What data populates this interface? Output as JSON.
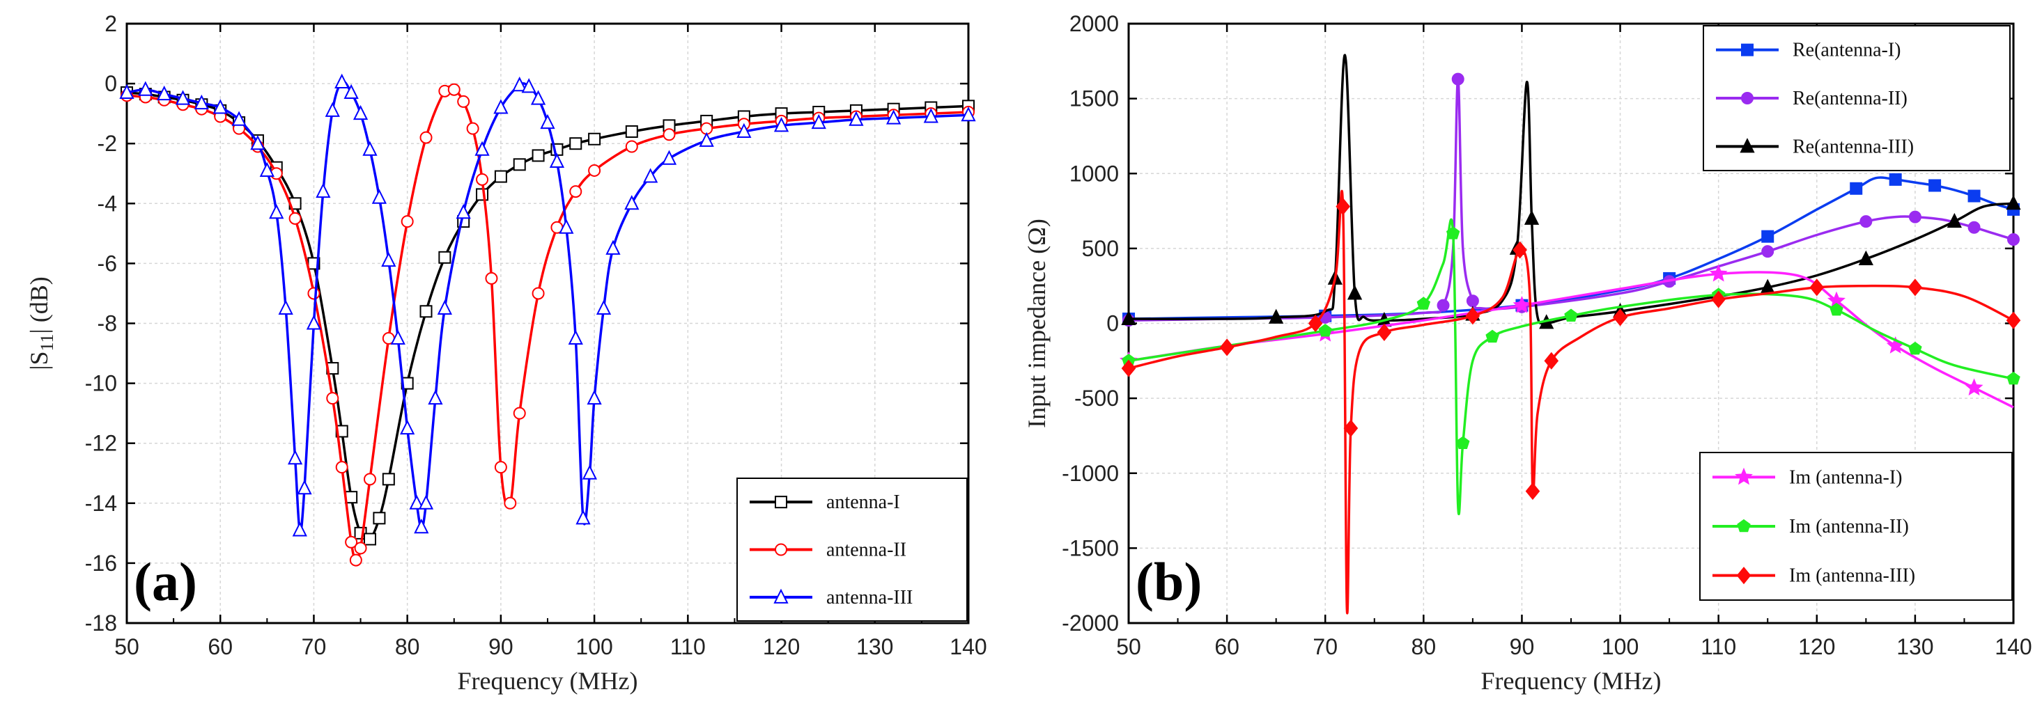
{
  "chart_data": [
    {
      "type": "line",
      "panel_label": "(a)",
      "xlabel": "Frequency  (MHz)",
      "ylabel": "|S11| (dB)",
      "ylabel_main": "|S",
      "ylabel_sub": "11",
      "ylabel_tail": "| (dB)",
      "xlim": [
        50,
        140
      ],
      "ylim": [
        -18,
        2
      ],
      "xticks": [
        50,
        60,
        70,
        80,
        90,
        100,
        110,
        120,
        130,
        140
      ],
      "yticks": [
        -18,
        -16,
        -14,
        -12,
        -10,
        -8,
        -6,
        -4,
        -2,
        0,
        2
      ],
      "grid": true,
      "legend_position": "bottom-right",
      "series": [
        {
          "name": "antenna-I",
          "color": "#000000",
          "marker": "square",
          "dip_mhz": 76,
          "min_db": -15.2,
          "left_width": 5.5,
          "right_width": 9,
          "mirrored_dip_mhz": null,
          "x": [
            50,
            52,
            54,
            56,
            58,
            60,
            62,
            64,
            66,
            68,
            70,
            72,
            73,
            74,
            75,
            76,
            77,
            78,
            80,
            82,
            84,
            86,
            88,
            90,
            92,
            94,
            96,
            98,
            100,
            104,
            108,
            112,
            116,
            120,
            124,
            128,
            132,
            136,
            140
          ],
          "y": [
            -0.3,
            -0.35,
            -0.45,
            -0.55,
            -0.7,
            -0.9,
            -1.3,
            -1.9,
            -2.8,
            -4.0,
            -6.0,
            -9.5,
            -11.6,
            -13.8,
            -15.0,
            -15.2,
            -14.5,
            -13.2,
            -10.0,
            -7.6,
            -5.8,
            -4.6,
            -3.7,
            -3.1,
            -2.7,
            -2.4,
            -2.2,
            -2.0,
            -1.85,
            -1.6,
            -1.4,
            -1.25,
            -1.1,
            -1.0,
            -0.95,
            -0.9,
            -0.85,
            -0.8,
            -0.75
          ]
        },
        {
          "name": "antenna-II",
          "color": "#ff0000",
          "marker": "circle",
          "dip_mhz": 74.5,
          "min_db": -16,
          "mirrored_dip_mhz": 90,
          "x": [
            50,
            52,
            54,
            56,
            58,
            60,
            62,
            64,
            66,
            68,
            70,
            72,
            73,
            74,
            74.5,
            75,
            76,
            78,
            80,
            82,
            84,
            85,
            86,
            87,
            88,
            89,
            90,
            91,
            92,
            94,
            96,
            98,
            100,
            104,
            108,
            112,
            116,
            120,
            124,
            128,
            132,
            136,
            140
          ],
          "y": [
            -0.4,
            -0.45,
            -0.55,
            -0.7,
            -0.85,
            -1.1,
            -1.5,
            -2.1,
            -3.0,
            -4.5,
            -7.0,
            -10.5,
            -12.8,
            -15.3,
            -15.9,
            -15.5,
            -13.2,
            -8.5,
            -4.6,
            -1.8,
            -0.25,
            -0.2,
            -0.6,
            -1.5,
            -3.2,
            -6.5,
            -12.8,
            -14.0,
            -11.0,
            -7.0,
            -4.8,
            -3.6,
            -2.9,
            -2.1,
            -1.7,
            -1.5,
            -1.35,
            -1.25,
            -1.15,
            -1.1,
            -1.05,
            -1.0,
            -0.95
          ]
        },
        {
          "name": "antenna-III",
          "color": "#0000ff",
          "marker": "triangle",
          "dip_mhz": 68.5,
          "min_db": -15,
          "x": [
            50,
            52,
            54,
            56,
            58,
            60,
            62,
            64,
            65,
            66,
            67,
            68,
            68.5,
            69,
            70,
            71,
            72,
            73,
            74,
            75,
            76,
            77,
            78,
            79,
            80,
            81,
            81.5,
            82,
            83,
            84,
            86,
            88,
            90,
            92,
            93,
            94,
            95,
            96,
            97,
            98,
            98.8,
            99.5,
            100,
            101,
            102,
            104,
            106,
            108,
            112,
            116,
            120,
            124,
            128,
            132,
            136,
            140
          ],
          "y": [
            -0.3,
            -0.2,
            -0.35,
            -0.5,
            -0.65,
            -0.8,
            -1.2,
            -2.0,
            -2.9,
            -4.3,
            -7.5,
            -12.5,
            -14.9,
            -13.5,
            -8.0,
            -3.6,
            -0.9,
            0.05,
            -0.3,
            -1.0,
            -2.2,
            -3.8,
            -5.9,
            -8.5,
            -11.5,
            -14.0,
            -14.8,
            -14.0,
            -10.5,
            -7.5,
            -4.3,
            -2.2,
            -0.8,
            -0.05,
            -0.1,
            -0.5,
            -1.3,
            -2.6,
            -4.8,
            -8.5,
            -14.5,
            -13.0,
            -10.5,
            -7.5,
            -5.5,
            -4.0,
            -3.1,
            -2.5,
            -1.9,
            -1.6,
            -1.4,
            -1.3,
            -1.2,
            -1.15,
            -1.1,
            -1.05
          ]
        }
      ]
    },
    {
      "type": "line",
      "panel_label": "(b)",
      "xlabel": "Frequency (MHz)",
      "ylabel": "Input impedance  (Ω)",
      "xlim": [
        50,
        140
      ],
      "ylim": [
        -2000,
        2000
      ],
      "xticks": [
        50,
        60,
        70,
        80,
        90,
        100,
        110,
        120,
        130,
        140
      ],
      "yticks": [
        -2000,
        -1500,
        -1000,
        -500,
        0,
        500,
        1000,
        1500,
        2000
      ],
      "grid": true,
      "legend_position": "top-right and bottom-right",
      "series": [
        {
          "name": "Re(antenna-I)",
          "color": "#0a3cf0",
          "marker": "square",
          "group": "re",
          "x": [
            50,
            60,
            70,
            80,
            90,
            100,
            105,
            110,
            115,
            120,
            124,
            126,
            128,
            130,
            132,
            134,
            136,
            138,
            140
          ],
          "y": [
            30,
            40,
            50,
            70,
            120,
            220,
            300,
            430,
            580,
            760,
            900,
            970,
            960,
            940,
            920,
            890,
            850,
            800,
            760
          ]
        },
        {
          "name": "Re(antenna-II)",
          "color": "#9a2bf0",
          "marker": "circle",
          "group": "re",
          "x": [
            50,
            60,
            70,
            80,
            82,
            83,
            83.5,
            84,
            85,
            86,
            90,
            100,
            105,
            110,
            115,
            120,
            125,
            128,
            130,
            133,
            136,
            138,
            140
          ],
          "y": [
            20,
            30,
            40,
            70,
            120,
            500,
            1630,
            500,
            150,
            100,
            110,
            200,
            280,
            380,
            480,
            590,
            680,
            710,
            710,
            690,
            640,
            600,
            560
          ]
        },
        {
          "name": "Re(antenna-III)",
          "color": "#000000",
          "marker": "triangle",
          "group": "re",
          "x": [
            50,
            60,
            65,
            70,
            71,
            72,
            73,
            74,
            76,
            80,
            85,
            88,
            89.5,
            90.5,
            91,
            91.5,
            92.5,
            95,
            100,
            110,
            115,
            120,
            125,
            130,
            134,
            137,
            140
          ],
          "y": [
            30,
            30,
            40,
            80,
            300,
            1790,
            200,
            40,
            20,
            30,
            60,
            150,
            500,
            1610,
            700,
            80,
            5,
            40,
            80,
            180,
            240,
            320,
            430,
            560,
            680,
            780,
            800
          ]
        },
        {
          "name": "Im (antenna-I)",
          "color": "#ff22ff",
          "marker": "star",
          "group": "im",
          "x": [
            50,
            60,
            70,
            80,
            90,
            100,
            110,
            118,
            122,
            125,
            128,
            132,
            136,
            140
          ],
          "y": [
            -250,
            -150,
            -70,
            20,
            120,
            230,
            330,
            320,
            150,
            -10,
            -150,
            -300,
            -430,
            -560
          ]
        },
        {
          "name": "Im (antenna-II)",
          "color": "#22ee22",
          "marker": "pentagon",
          "group": "im",
          "x": [
            50,
            60,
            70,
            76,
            80,
            82,
            83,
            83.5,
            84,
            85,
            87,
            90,
            95,
            100,
            110,
            118,
            122,
            126,
            130,
            134,
            140
          ],
          "y": [
            -250,
            -150,
            -50,
            20,
            130,
            400,
            600,
            -1210,
            -800,
            -250,
            -90,
            -20,
            50,
            110,
            190,
            180,
            90,
            -50,
            -170,
            -280,
            -370
          ]
        },
        {
          "name": "Im (antenna-III)",
          "color": "#ff0a0a",
          "marker": "diamond",
          "group": "im",
          "x": [
            50,
            55,
            60,
            65,
            69,
            71,
            71.8,
            72.2,
            72.6,
            73.5,
            76,
            80,
            85,
            88,
            89.8,
            90.8,
            91.1,
            91.6,
            93,
            96,
            100,
            105,
            110,
            115,
            120,
            125,
            130,
            135,
            140
          ],
          "y": [
            -300,
            -220,
            -160,
            -90,
            0,
            300,
            780,
            -1900,
            -700,
            -180,
            -60,
            -10,
            50,
            170,
            490,
            200,
            -1120,
            -600,
            -250,
            -90,
            40,
            100,
            160,
            200,
            240,
            250,
            240,
            180,
            20
          ]
        }
      ]
    }
  ]
}
